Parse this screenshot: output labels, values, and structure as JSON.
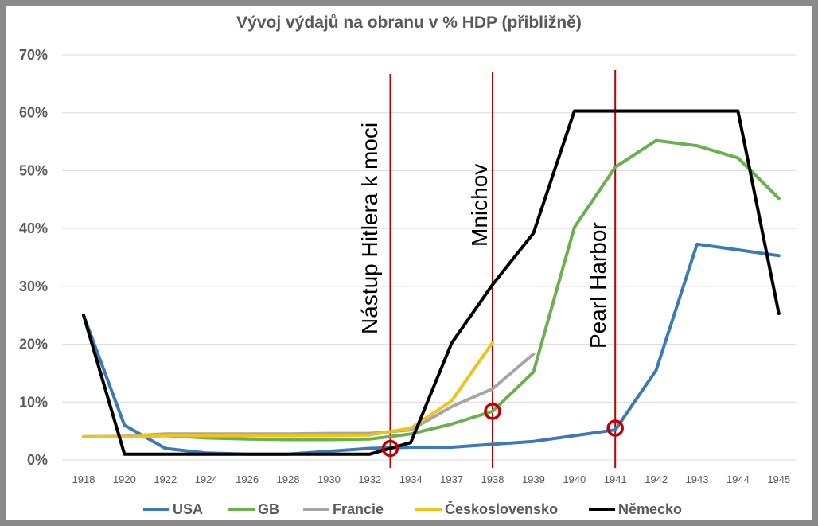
{
  "chart_data": {
    "type": "line",
    "title": "Vývoj výdajů na obranu v % HDP (přibližně)",
    "xlabel": "",
    "ylabel": "",
    "categories": [
      "1918",
      "1920",
      "1922",
      "1924",
      "1926",
      "1928",
      "1930",
      "1932",
      "1934",
      "1937",
      "1938",
      "1939",
      "1940",
      "1941",
      "1942",
      "1943",
      "1944",
      "1945"
    ],
    "ylim": [
      0,
      70
    ],
    "yticks": [
      "0%",
      "10%",
      "20%",
      "30%",
      "40%",
      "50%",
      "60%",
      "70%"
    ],
    "grid": true,
    "legend_position": "bottom",
    "series": [
      {
        "name": "USA",
        "color": "#3a7ab8",
        "points": [
          [
            0,
            25
          ],
          [
            1,
            6
          ],
          [
            2,
            2
          ],
          [
            3,
            1.2
          ],
          [
            4,
            1
          ],
          [
            5,
            1
          ],
          [
            6,
            1.5
          ],
          [
            7,
            2
          ],
          [
            7.5,
            2.1
          ],
          [
            8,
            2.2
          ],
          [
            9,
            2.2
          ],
          [
            10,
            2.7
          ],
          [
            11,
            3.2
          ],
          [
            12,
            4.2
          ],
          [
            13,
            5.2
          ],
          [
            14,
            15.5
          ],
          [
            15,
            37.3
          ],
          [
            16,
            36.3
          ],
          [
            17,
            35.3
          ]
        ]
      },
      {
        "name": "GB",
        "color": "#6ab04c",
        "points": [
          [
            0,
            4
          ],
          [
            1,
            4
          ],
          [
            2,
            4.2
          ],
          [
            3,
            3.8
          ],
          [
            4,
            3.6
          ],
          [
            5,
            3.5
          ],
          [
            6,
            3.5
          ],
          [
            7,
            3.6
          ],
          [
            8,
            4.5
          ],
          [
            9,
            6.2
          ],
          [
            10,
            8.4
          ],
          [
            11,
            15.2
          ],
          [
            12,
            40.2
          ],
          [
            13,
            50.6
          ],
          [
            14,
            55.2
          ],
          [
            15,
            54.3
          ],
          [
            16,
            52.2
          ],
          [
            17,
            45.2
          ]
        ]
      },
      {
        "name": "Francie",
        "color": "#a6a6a6",
        "points": [
          [
            0,
            4
          ],
          [
            1,
            4.1
          ],
          [
            2,
            4.5
          ],
          [
            3,
            4.5
          ],
          [
            4,
            4.5
          ],
          [
            5,
            4.5
          ],
          [
            6,
            4.6
          ],
          [
            7,
            4.6
          ],
          [
            8,
            5.2
          ],
          [
            9,
            9.2
          ],
          [
            10,
            12.3
          ],
          [
            11,
            18.3
          ]
        ]
      },
      {
        "name": "Československo",
        "color": "#f2c21b",
        "points": [
          [
            0,
            4
          ],
          [
            1,
            4
          ],
          [
            2,
            4.2
          ],
          [
            3,
            4.2
          ],
          [
            4,
            4.2
          ],
          [
            5,
            4.2
          ],
          [
            6,
            4.2
          ],
          [
            7,
            4.3
          ],
          [
            8,
            5.5
          ],
          [
            9,
            10.2
          ],
          [
            10,
            20.3
          ]
        ]
      },
      {
        "name": "Německo",
        "color": "#000000",
        "points": [
          [
            0,
            25
          ],
          [
            1,
            1
          ],
          [
            2,
            1
          ],
          [
            3,
            1
          ],
          [
            4,
            1
          ],
          [
            5,
            1
          ],
          [
            6,
            1
          ],
          [
            7,
            1
          ],
          [
            8,
            3
          ],
          [
            9,
            20.2
          ],
          [
            10,
            30.3
          ],
          [
            11,
            39.2
          ],
          [
            12,
            60.3
          ],
          [
            13,
            60.3
          ],
          [
            14,
            60.3
          ],
          [
            15,
            60.3
          ],
          [
            16,
            60.3
          ],
          [
            17,
            25.3
          ]
        ]
      }
    ],
    "annotations": [
      {
        "label": "Nástup Hitlera k moci",
        "x": 7.5,
        "marker_y": 2
      },
      {
        "label": "Mnichov",
        "x": 10,
        "marker_y": 8.4
      },
      {
        "label": "Pearl Harbor",
        "x": 13,
        "marker_y": 5.5
      }
    ],
    "annotation_color": "#c00000"
  }
}
